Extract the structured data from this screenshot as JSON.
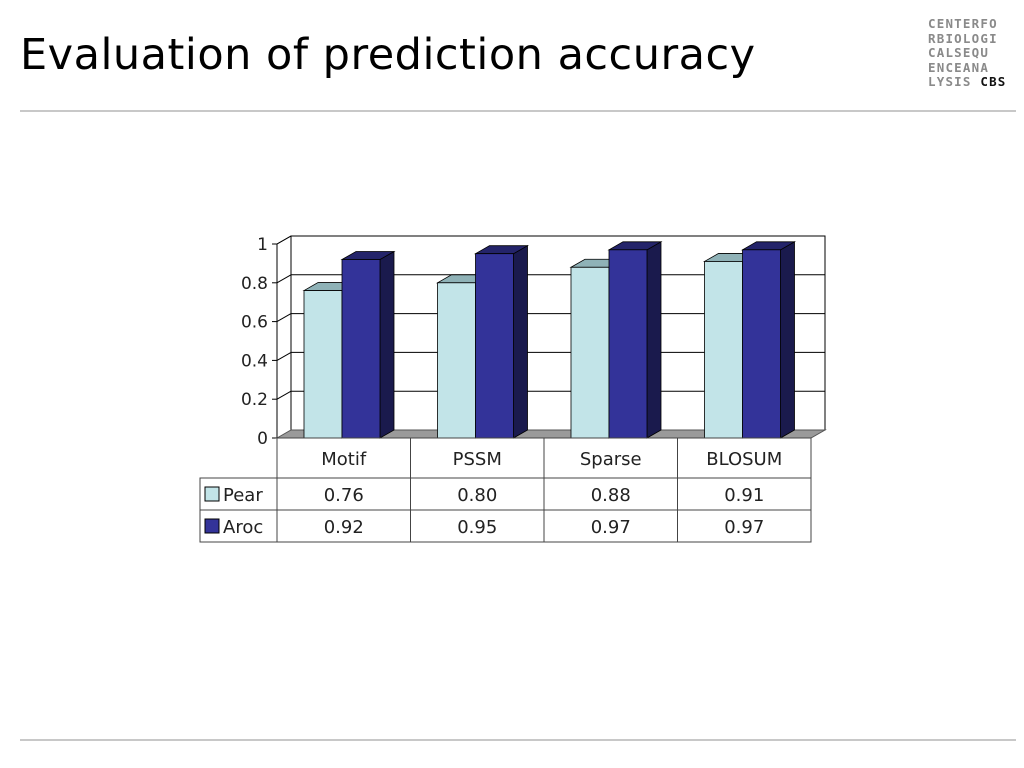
{
  "slide": {
    "title": "Evaluation of prediction accuracy",
    "logo": {
      "lines": [
        "CENTERFO",
        "RBIOLOGI",
        "CALSEQU",
        "ENCEANA"
      ],
      "last_line_prefix": "LYSIS ",
      "last_line_brand": "CBS"
    }
  },
  "chart_data": {
    "type": "bar",
    "categories": [
      "Motif",
      "PSSM",
      "Sparse",
      "BLOSUM"
    ],
    "series": [
      {
        "name": "Pear",
        "values": [
          0.76,
          0.8,
          0.88,
          0.91
        ],
        "value_labels": [
          "0.76",
          "0.80",
          "0.88",
          "0.91"
        ],
        "color": "#c2e4e8",
        "side_color": "#7fa3a8",
        "top_color": "#8fb2b7"
      },
      {
        "name": "Aroc",
        "values": [
          0.92,
          0.95,
          0.97,
          0.97
        ],
        "value_labels": [
          "0.92",
          "0.95",
          "0.97",
          "0.97"
        ],
        "color": "#333399",
        "side_color": "#1a1a4d",
        "top_color": "#24246a"
      }
    ],
    "ylim": [
      0,
      1
    ],
    "yticks": [
      0,
      0.2,
      0.4,
      0.6,
      0.8,
      1
    ],
    "ytick_labels": [
      "0",
      "0.2",
      "0.4",
      "0.6",
      "0.8",
      "1"
    ],
    "grid": true,
    "style": "3d-column",
    "data_table": true,
    "legend": "in-data-table"
  }
}
